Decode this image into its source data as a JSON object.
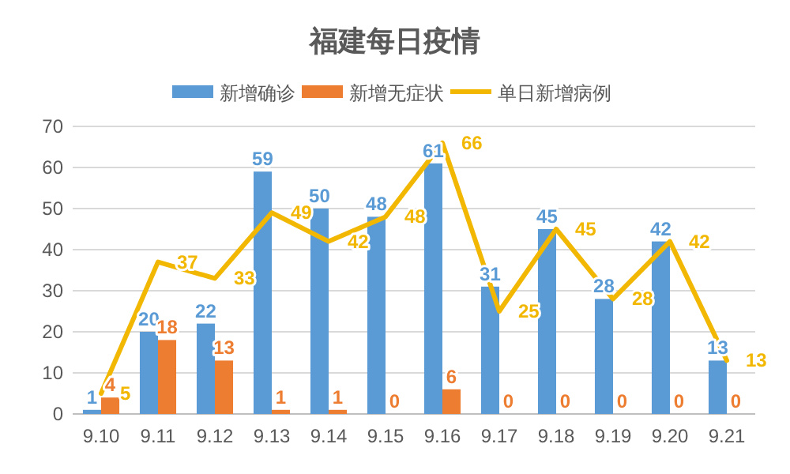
{
  "chart_data": {
    "type": "bar",
    "title": "福建每日疫情",
    "categories": [
      "9.10",
      "9.11",
      "9.12",
      "9.13",
      "9.14",
      "9.15",
      "9.16",
      "9.17",
      "9.18",
      "9.19",
      "9.20",
      "9.21"
    ],
    "series": [
      {
        "name": "新增确诊",
        "color": "#5b9bd5",
        "values": [
          1,
          20,
          22,
          59,
          50,
          48,
          61,
          31,
          45,
          28,
          42,
          13
        ]
      },
      {
        "name": "新增无症状",
        "color": "#ed7d31",
        "values": [
          4,
          18,
          13,
          1,
          1,
          0,
          6,
          0,
          0,
          0,
          0,
          0
        ]
      },
      {
        "name": "单日新增病例",
        "type": "line",
        "color": "#f2b700",
        "values": [
          5,
          37,
          33,
          49,
          42,
          48,
          66,
          25,
          45,
          28,
          42,
          13
        ]
      }
    ],
    "ylim": [
      0,
      70
    ],
    "yticks": [
      0,
      10,
      20,
      30,
      40,
      50,
      60,
      70
    ],
    "grid": "y",
    "legend": "top",
    "data_labels": true
  }
}
